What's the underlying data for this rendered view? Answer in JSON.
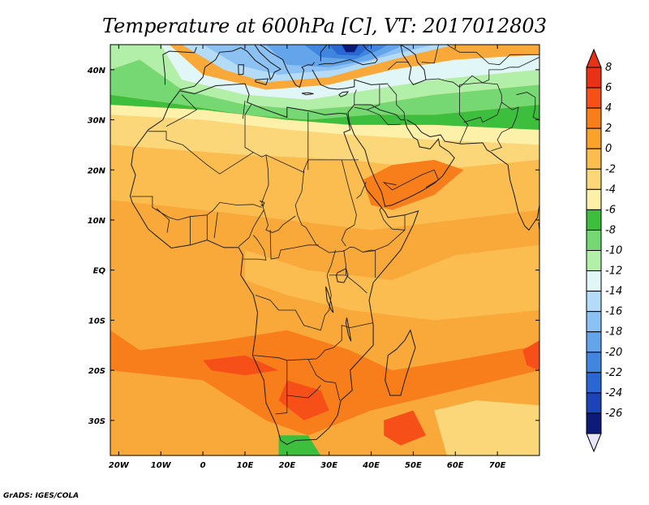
{
  "title": "Temperature at 600hPa [C], VT: 2017012803",
  "credit": "GrADS: IGES/COLA",
  "map": {
    "lon_range": [
      -22,
      80
    ],
    "lat_range": [
      -37,
      45
    ],
    "x_ticks": [
      {
        "lon": -20,
        "label": "20W"
      },
      {
        "lon": -10,
        "label": "10W"
      },
      {
        "lon": 0,
        "label": "0"
      },
      {
        "lon": 10,
        "label": "10E"
      },
      {
        "lon": 20,
        "label": "20E"
      },
      {
        "lon": 30,
        "label": "30E"
      },
      {
        "lon": 40,
        "label": "40E"
      },
      {
        "lon": 50,
        "label": "50E"
      },
      {
        "lon": 60,
        "label": "60E"
      },
      {
        "lon": 70,
        "label": "70E"
      }
    ],
    "y_ticks": [
      {
        "lat": 40,
        "label": "40N"
      },
      {
        "lat": 30,
        "label": "30N"
      },
      {
        "lat": 20,
        "label": "20N"
      },
      {
        "lat": 10,
        "label": "10N"
      },
      {
        "lat": 0,
        "label": "EQ"
      },
      {
        "lat": -10,
        "label": "10S"
      },
      {
        "lat": -20,
        "label": "20S"
      },
      {
        "lat": -30,
        "label": "30S"
      }
    ]
  },
  "colorbar": {
    "levels": [
      {
        "label": "8",
        "color": "#e83218"
      },
      {
        "label": "6",
        "color": "#f65018"
      },
      {
        "label": "4",
        "color": "#f87e1b"
      },
      {
        "label": "2",
        "color": "#f9a22c"
      },
      {
        "label": "0",
        "color": "#fbbd4f"
      },
      {
        "label": "-2",
        "color": "#fcd77a"
      },
      {
        "label": "-4",
        "color": "#fdf0a8"
      },
      {
        "label": "-6",
        "color": "#3dbe3d"
      },
      {
        "label": "-8",
        "color": "#75d873"
      },
      {
        "label": "-10",
        "color": "#b2efa9"
      },
      {
        "label": "-12",
        "color": "#e1f7f7"
      },
      {
        "label": "-14",
        "color": "#b4dcf8"
      },
      {
        "label": "-16",
        "color": "#8bc1f3"
      },
      {
        "label": "-18",
        "color": "#64a4ea"
      },
      {
        "label": "-20",
        "color": "#4086df"
      },
      {
        "label": "-22",
        "color": "#2a67d3"
      },
      {
        "label": "-24",
        "color": "#1c43b8"
      },
      {
        "label": "-26",
        "color": "#0e1a78"
      }
    ],
    "under_color": "#e8e6f8"
  },
  "colors": {
    "background_field": "#f9a93a",
    "frame": "#000000",
    "coast": "#1a1a1a"
  }
}
